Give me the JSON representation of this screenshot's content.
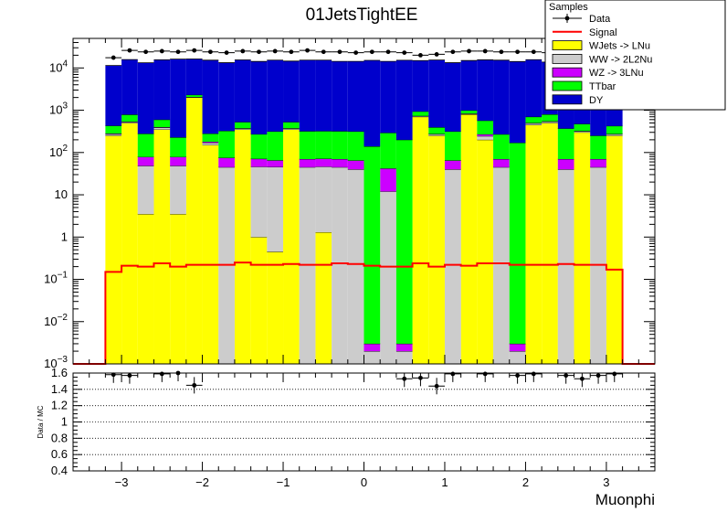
{
  "chart_data": {
    "type": "bar",
    "title": "01JetsTightEE",
    "xlabel": "Muonphi",
    "x_range": [
      -3.6,
      3.6
    ],
    "x_bin_edges": [
      -3.2,
      -3.0,
      -2.8,
      -2.6,
      -2.4,
      -2.2,
      -2.0,
      -1.8,
      -1.6,
      -1.4,
      -1.2,
      -1.0,
      -0.8,
      -0.6,
      -0.4,
      -0.2,
      0.0,
      0.2,
      0.4,
      0.6,
      0.8,
      1.0,
      1.2,
      1.4,
      1.6,
      1.8,
      2.0,
      2.2,
      2.4,
      2.6,
      2.8,
      3.0,
      3.2
    ],
    "x_ticks": [
      -3,
      -2,
      -1,
      0,
      1,
      2,
      3
    ],
    "x_tick_labels": [
      "−3",
      "−2",
      "−1",
      "0",
      "1",
      "2",
      "3"
    ],
    "y_scale": "log",
    "ylim": [
      0.001,
      50000
    ],
    "y_ticks": [
      0.001,
      0.01,
      0.1,
      1,
      10,
      100,
      1000,
      10000
    ],
    "y_tick_labels": [
      {
        "base": "10",
        "exp": "−3"
      },
      {
        "base": "10",
        "exp": "−2"
      },
      {
        "base": "10",
        "exp": "−1"
      },
      {
        "base": "1",
        "exp": ""
      },
      {
        "base": "10",
        "exp": ""
      },
      {
        "base": "10",
        "exp": "2"
      },
      {
        "base": "10",
        "exp": "3"
      },
      {
        "base": "10",
        "exp": "4"
      }
    ],
    "stack_series": [
      {
        "name": "WJets -> LNu",
        "color": "#ffff00",
        "values": [
          250,
          500,
          3.5,
          350,
          3.5,
          2000,
          150,
          0.001,
          350,
          1,
          0.45,
          350,
          0.001,
          1.3,
          0.001,
          0.001,
          0.001,
          0.001,
          0.001,
          700,
          250,
          0.001,
          800,
          200,
          0.001,
          0.001,
          450,
          500,
          0.001,
          300,
          0.001,
          250
        ]
      },
      {
        "name": "WW -> 2L2Nu",
        "color": "#cccccc",
        "values": [
          20,
          30,
          45,
          40,
          45,
          50,
          20,
          45,
          20,
          45,
          45,
          20,
          45,
          45,
          45,
          40,
          0.001,
          12,
          0.001,
          30,
          20,
          40,
          30,
          45,
          45,
          0.001,
          40,
          40,
          40,
          20,
          45,
          20
        ]
      },
      {
        "name": "WZ -> 3LNu",
        "color": "#cc00ff",
        "values": [
          10,
          10,
          30,
          10,
          30,
          10,
          10,
          30,
          5,
          25,
          20,
          5,
          25,
          25,
          25,
          25,
          0.001,
          30,
          0.001,
          5,
          5,
          25,
          10,
          25,
          25,
          0.001,
          10,
          10,
          30,
          5,
          25,
          5
        ]
      },
      {
        "name": "TTbar",
        "color": "#00ff00",
        "values": [
          150,
          250,
          200,
          200,
          150,
          250,
          100,
          250,
          150,
          200,
          250,
          150,
          250,
          250,
          250,
          250,
          140,
          250,
          200,
          200,
          120,
          250,
          150,
          300,
          200,
          170,
          200,
          250,
          300,
          150,
          180,
          150
        ]
      },
      {
        "name": "DY",
        "color": "#0000cc",
        "values": [
          11000,
          15000,
          13000,
          15000,
          16000,
          14000,
          15000,
          13000,
          15000,
          14000,
          15000,
          14000,
          15000,
          15000,
          14000,
          14000,
          15000,
          14000,
          15000,
          14000,
          15000,
          13000,
          14000,
          15000,
          15000,
          14000,
          15000,
          13000,
          14000,
          14000,
          13000,
          12000
        ]
      }
    ],
    "signal": {
      "name": "Signal",
      "color": "#ff0000",
      "values": [
        0.15,
        0.21,
        0.2,
        0.24,
        0.2,
        0.22,
        0.22,
        0.22,
        0.25,
        0.22,
        0.22,
        0.23,
        0.22,
        0.22,
        0.24,
        0.23,
        0.21,
        0.2,
        0.2,
        0.24,
        0.2,
        0.22,
        0.21,
        0.24,
        0.24,
        0.22,
        0.22,
        0.22,
        0.23,
        0.22,
        0.22,
        0.17
      ]
    },
    "data_points": {
      "name": "Data",
      "color": "#000000",
      "values": [
        17500,
        26000,
        24000,
        25000,
        24000,
        26000,
        24000,
        23000,
        25000,
        24000,
        25000,
        24000,
        26000,
        24000,
        24000,
        23000,
        24000,
        24000,
        23000,
        20000,
        21000,
        24000,
        25000,
        25000,
        24000,
        24000,
        24000,
        23000,
        24000,
        23000,
        22000,
        20000
      ]
    },
    "ratio": {
      "ylabel": "Data / MC",
      "ylim": [
        0.4,
        1.6
      ],
      "y_ticks": [
        0.4,
        0.6,
        0.8,
        1.0,
        1.2,
        1.4,
        1.6
      ],
      "y_tick_labels": [
        "0.4",
        "0.6",
        "0.8",
        "1",
        "1.2",
        "1.4",
        "1.6"
      ],
      "points": [
        {
          "x": -3.1,
          "y": 1.58
        },
        {
          "x": -2.9,
          "y": 1.57
        },
        {
          "x": -2.5,
          "y": 1.59
        },
        {
          "x": -2.3,
          "y": 1.6
        },
        {
          "x": -2.1,
          "y": 1.45
        },
        {
          "x": 0.5,
          "y": 1.53
        },
        {
          "x": 0.7,
          "y": 1.54
        },
        {
          "x": 0.9,
          "y": 1.44
        },
        {
          "x": 1.1,
          "y": 1.59
        },
        {
          "x": 1.5,
          "y": 1.59
        },
        {
          "x": 1.9,
          "y": 1.57
        },
        {
          "x": 2.1,
          "y": 1.59
        },
        {
          "x": 2.5,
          "y": 1.57
        },
        {
          "x": 2.7,
          "y": 1.53
        },
        {
          "x": 2.9,
          "y": 1.57
        },
        {
          "x": 3.1,
          "y": 1.59
        }
      ]
    },
    "legend": {
      "header": "Samples",
      "placement": "top-right",
      "entries": [
        {
          "label": "Data",
          "color": "#000000",
          "style": "marker"
        },
        {
          "label": "Signal",
          "color": "#ff0000",
          "style": "line"
        },
        {
          "label": "WJets -> LNu",
          "color": "#ffff00",
          "style": "fill"
        },
        {
          "label": "WW -> 2L2Nu",
          "color": "#cccccc",
          "style": "fill"
        },
        {
          "label": "WZ -> 3LNu",
          "color": "#cc00ff",
          "style": "fill"
        },
        {
          "label": "TTbar",
          "color": "#00ff00",
          "style": "fill"
        },
        {
          "label": "DY",
          "color": "#0000cc",
          "style": "fill"
        }
      ]
    }
  }
}
